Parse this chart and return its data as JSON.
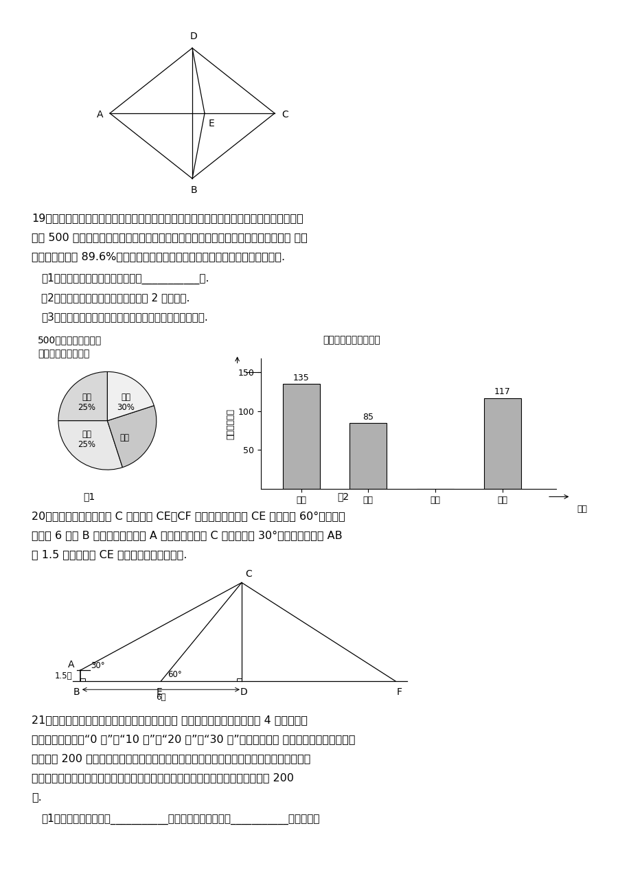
{
  "bg_color": "#ffffff",
  "fig_width": 9.2,
  "fig_height": 13.02,
  "pie_sizes": [
    25,
    30,
    25,
    20
  ],
  "pie_colors": [
    "#d8d8d8",
    "#e8e8e8",
    "#c8c8c8",
    "#f0f0f0"
  ],
  "bar_categories": [
    "甲种",
    "乙种",
    "丙种",
    "丁种"
  ],
  "bar_values": [
    135,
    85,
    0,
    117
  ],
  "bar_color": "#b0b0b0"
}
